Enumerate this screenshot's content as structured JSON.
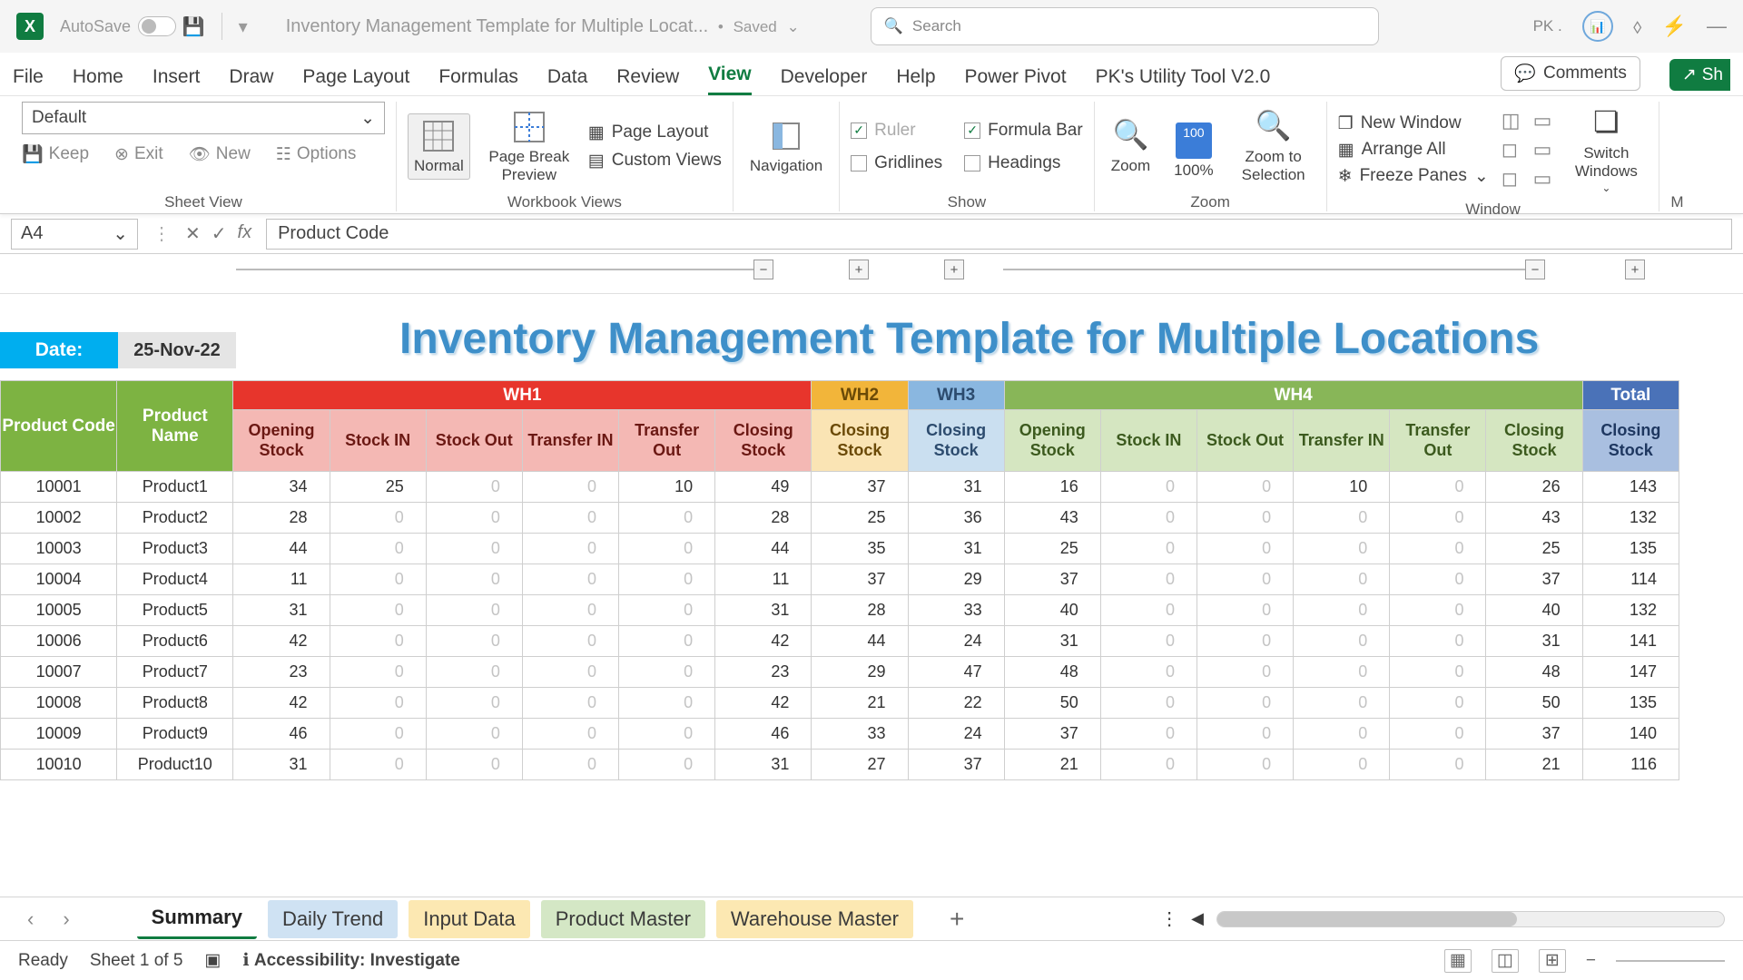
{
  "titlebar": {
    "autosave_label": "AutoSave",
    "autosave_state": "On",
    "doc_title": "Inventory Management Template for Multiple Locat...",
    "saved_state": "Saved",
    "search_placeholder": "Search",
    "user_short": "PK ."
  },
  "tabs": {
    "items": [
      "File",
      "Home",
      "Insert",
      "Draw",
      "Page Layout",
      "Formulas",
      "Data",
      "Review",
      "View",
      "Developer",
      "Help",
      "Power Pivot",
      "PK's Utility Tool V2.0"
    ],
    "active": "View",
    "comments": "Comments",
    "share": "Sh"
  },
  "ribbon": {
    "sheetView": {
      "label": "Sheet View",
      "default": "Default",
      "keep": "Keep",
      "exit": "Exit",
      "new": "New",
      "options": "Options"
    },
    "workbookViews": {
      "label": "Workbook Views",
      "normal": "Normal",
      "pageBreak": "Page Break Preview",
      "pageLayout": "Page Layout",
      "custom": "Custom Views"
    },
    "nav": {
      "label": "",
      "navigation": "Navigation"
    },
    "show": {
      "label": "Show",
      "ruler": "Ruler",
      "formulaBar": "Formula Bar",
      "gridlines": "Gridlines",
      "headings": "Headings"
    },
    "zoom": {
      "label": "Zoom",
      "zoom": "Zoom",
      "hundred": "100%",
      "toSel": "Zoom to Selection"
    },
    "window": {
      "label": "Window",
      "newWindow": "New Window",
      "arrangeAll": "Arrange All",
      "freezePanes": "Freeze Panes",
      "switch": "Switch Windows"
    }
  },
  "formulaBar": {
    "nameBox": "A4",
    "formula": "Product Code"
  },
  "sheet": {
    "date_label": "Date:",
    "date_value": "25-Nov-22",
    "title": "Inventory Management Template for Multiple Locations",
    "colors": {
      "wh1": "#e7352c",
      "wh2": "#f2b53a",
      "wh3": "#8ab7e0",
      "wh4": "#88b658",
      "total": "#4a72b8",
      "prod": "#7db342"
    },
    "section_headers": [
      "WH1",
      "WH2",
      "WH3",
      "WH4",
      "Total"
    ],
    "prod_cols": [
      "Product Code",
      "Product Name"
    ],
    "wh_main_cols": [
      "Opening Stock",
      "Stock IN",
      "Stock Out",
      "Transfer IN",
      "Transfer Out",
      "Closing Stock"
    ],
    "closing_col": "Closing Stock",
    "rows": [
      {
        "code": "10001",
        "name": "Product1",
        "wh1_open": 34,
        "wh1_in": 25,
        "wh1_out": 0,
        "wh1_tin": 0,
        "wh1_tout": 10,
        "wh1_close": 49,
        "wh2_close": 37,
        "wh3_close": 31,
        "wh4_open": 16,
        "wh4_in": 0,
        "wh4_out": 0,
        "wh4_tin": 10,
        "wh4_tout": 0,
        "wh4_close": 26,
        "total": 143
      },
      {
        "code": "10002",
        "name": "Product2",
        "wh1_open": 28,
        "wh1_in": 0,
        "wh1_out": 0,
        "wh1_tin": 0,
        "wh1_tout": 0,
        "wh1_close": 28,
        "wh2_close": 25,
        "wh3_close": 36,
        "wh4_open": 43,
        "wh4_in": 0,
        "wh4_out": 0,
        "wh4_tin": 0,
        "wh4_tout": 0,
        "wh4_close": 43,
        "total": 132
      },
      {
        "code": "10003",
        "name": "Product3",
        "wh1_open": 44,
        "wh1_in": 0,
        "wh1_out": 0,
        "wh1_tin": 0,
        "wh1_tout": 0,
        "wh1_close": 44,
        "wh2_close": 35,
        "wh3_close": 31,
        "wh4_open": 25,
        "wh4_in": 0,
        "wh4_out": 0,
        "wh4_tin": 0,
        "wh4_tout": 0,
        "wh4_close": 25,
        "total": 135
      },
      {
        "code": "10004",
        "name": "Product4",
        "wh1_open": 11,
        "wh1_in": 0,
        "wh1_out": 0,
        "wh1_tin": 0,
        "wh1_tout": 0,
        "wh1_close": 11,
        "wh2_close": 37,
        "wh3_close": 29,
        "wh4_open": 37,
        "wh4_in": 0,
        "wh4_out": 0,
        "wh4_tin": 0,
        "wh4_tout": 0,
        "wh4_close": 37,
        "total": 114
      },
      {
        "code": "10005",
        "name": "Product5",
        "wh1_open": 31,
        "wh1_in": 0,
        "wh1_out": 0,
        "wh1_tin": 0,
        "wh1_tout": 0,
        "wh1_close": 31,
        "wh2_close": 28,
        "wh3_close": 33,
        "wh4_open": 40,
        "wh4_in": 0,
        "wh4_out": 0,
        "wh4_tin": 0,
        "wh4_tout": 0,
        "wh4_close": 40,
        "total": 132
      },
      {
        "code": "10006",
        "name": "Product6",
        "wh1_open": 42,
        "wh1_in": 0,
        "wh1_out": 0,
        "wh1_tin": 0,
        "wh1_tout": 0,
        "wh1_close": 42,
        "wh2_close": 44,
        "wh3_close": 24,
        "wh4_open": 31,
        "wh4_in": 0,
        "wh4_out": 0,
        "wh4_tin": 0,
        "wh4_tout": 0,
        "wh4_close": 31,
        "total": 141
      },
      {
        "code": "10007",
        "name": "Product7",
        "wh1_open": 23,
        "wh1_in": 0,
        "wh1_out": 0,
        "wh1_tin": 0,
        "wh1_tout": 0,
        "wh1_close": 23,
        "wh2_close": 29,
        "wh3_close": 47,
        "wh4_open": 48,
        "wh4_in": 0,
        "wh4_out": 0,
        "wh4_tin": 0,
        "wh4_tout": 0,
        "wh4_close": 48,
        "total": 147
      },
      {
        "code": "10008",
        "name": "Product8",
        "wh1_open": 42,
        "wh1_in": 0,
        "wh1_out": 0,
        "wh1_tin": 0,
        "wh1_tout": 0,
        "wh1_close": 42,
        "wh2_close": 21,
        "wh3_close": 22,
        "wh4_open": 50,
        "wh4_in": 0,
        "wh4_out": 0,
        "wh4_tin": 0,
        "wh4_tout": 0,
        "wh4_close": 50,
        "total": 135
      },
      {
        "code": "10009",
        "name": "Product9",
        "wh1_open": 46,
        "wh1_in": 0,
        "wh1_out": 0,
        "wh1_tin": 0,
        "wh1_tout": 0,
        "wh1_close": 46,
        "wh2_close": 33,
        "wh3_close": 24,
        "wh4_open": 37,
        "wh4_in": 0,
        "wh4_out": 0,
        "wh4_tin": 0,
        "wh4_tout": 0,
        "wh4_close": 37,
        "total": 140
      },
      {
        "code": "10010",
        "name": "Product10",
        "wh1_open": 31,
        "wh1_in": 0,
        "wh1_out": 0,
        "wh1_tin": 0,
        "wh1_tout": 0,
        "wh1_close": 31,
        "wh2_close": 27,
        "wh3_close": 37,
        "wh4_open": 21,
        "wh4_in": 0,
        "wh4_out": 0,
        "wh4_tin": 0,
        "wh4_tout": 0,
        "wh4_close": 21,
        "total": 116
      }
    ]
  },
  "sheetTabs": {
    "items": [
      {
        "label": "Summary",
        "cls": "active"
      },
      {
        "label": "Daily Trend",
        "cls": "c-blue"
      },
      {
        "label": "Input Data",
        "cls": "c-yel"
      },
      {
        "label": "Product Master",
        "cls": "c-grn"
      },
      {
        "label": "Warehouse Master",
        "cls": "c-yel"
      }
    ]
  },
  "statusBar": {
    "ready": "Ready",
    "sheetOf": "Sheet 1 of 5",
    "accessibility": "Accessibility: Investigate"
  }
}
